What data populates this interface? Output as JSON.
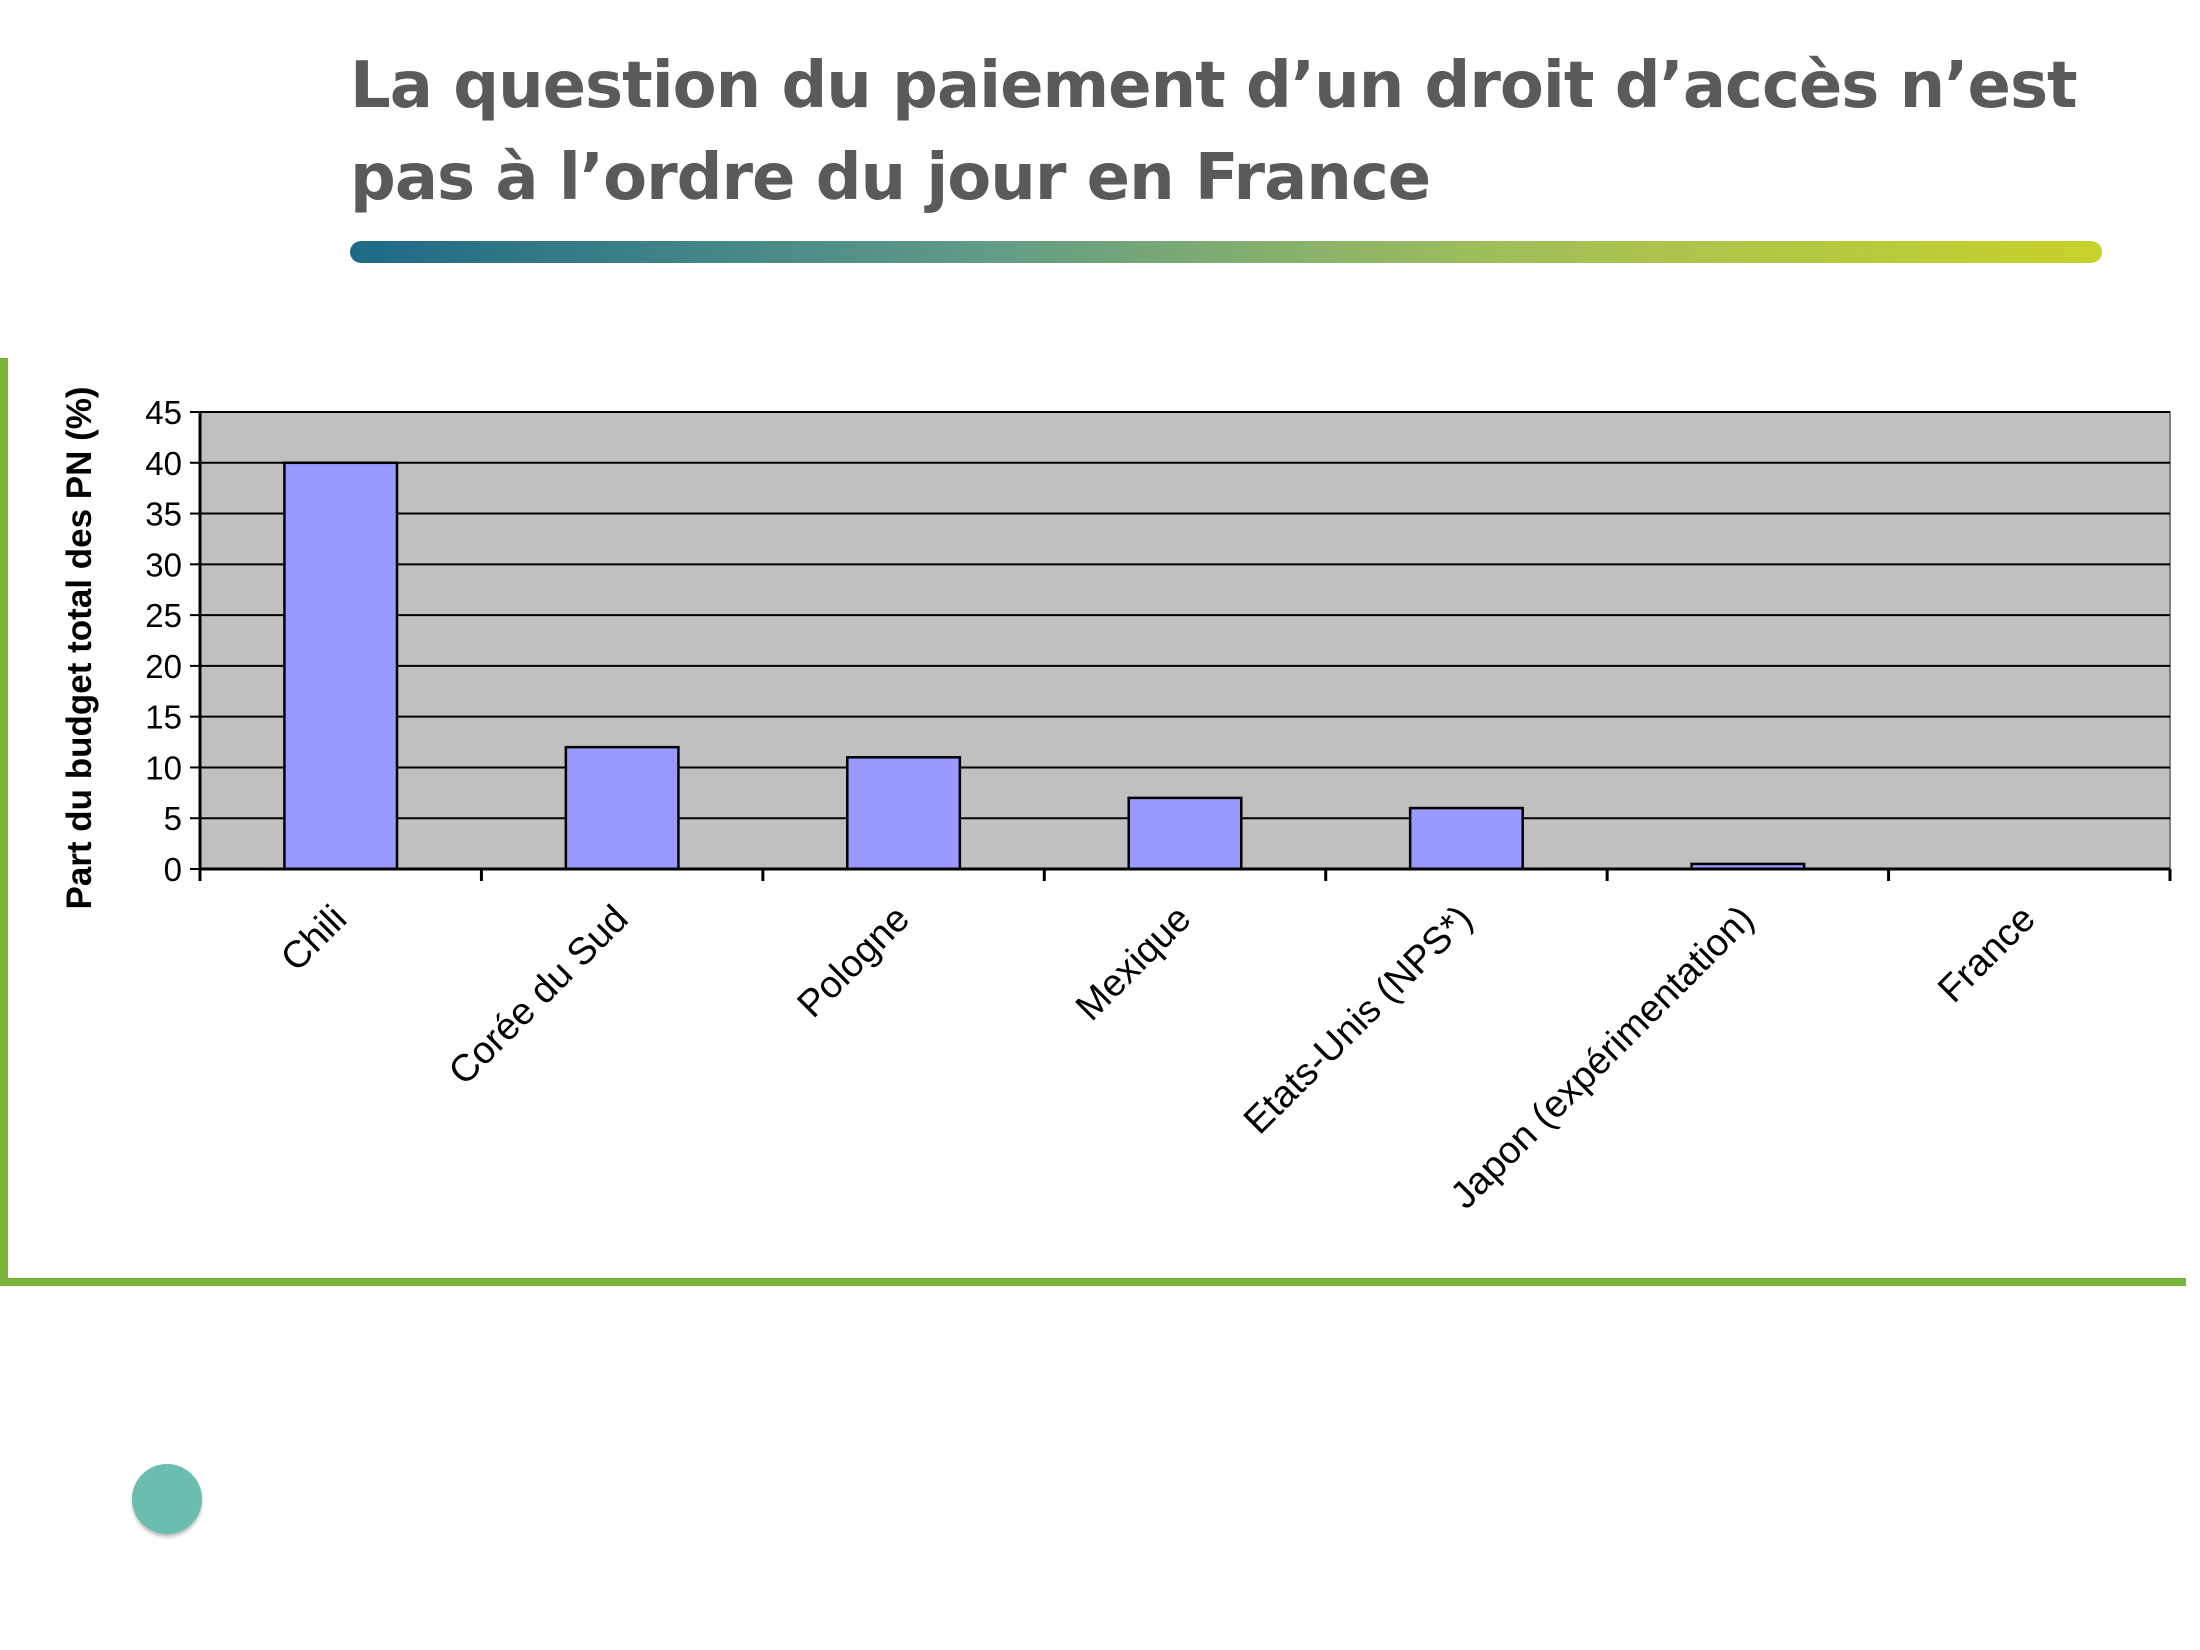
{
  "slide": {
    "title": "La question du paiement d’un droit d’accès n’est pas à l’ordre du jour en France"
  },
  "colors": {
    "bar_fill": "#9999ff",
    "plot_background": "#c0c0c0",
    "frame_green": "#7bb63a",
    "bullet": "#6bbdb0"
  },
  "chart_data": {
    "type": "bar",
    "title": "",
    "xlabel": "",
    "ylabel": "Part du budget total des PN (%)",
    "categories": [
      "Chili",
      "Corée du Sud",
      "Pologne",
      "Mexique",
      "Etats-Unis (NPS*)",
      "Japon (expérimentation)",
      "France"
    ],
    "values": [
      40,
      12,
      11,
      7,
      6,
      0.5,
      0
    ],
    "ylim": [
      0,
      45
    ],
    "yticks": [
      0,
      5,
      10,
      15,
      20,
      25,
      30,
      35,
      40,
      45
    ],
    "grid": true,
    "legend": "none"
  }
}
